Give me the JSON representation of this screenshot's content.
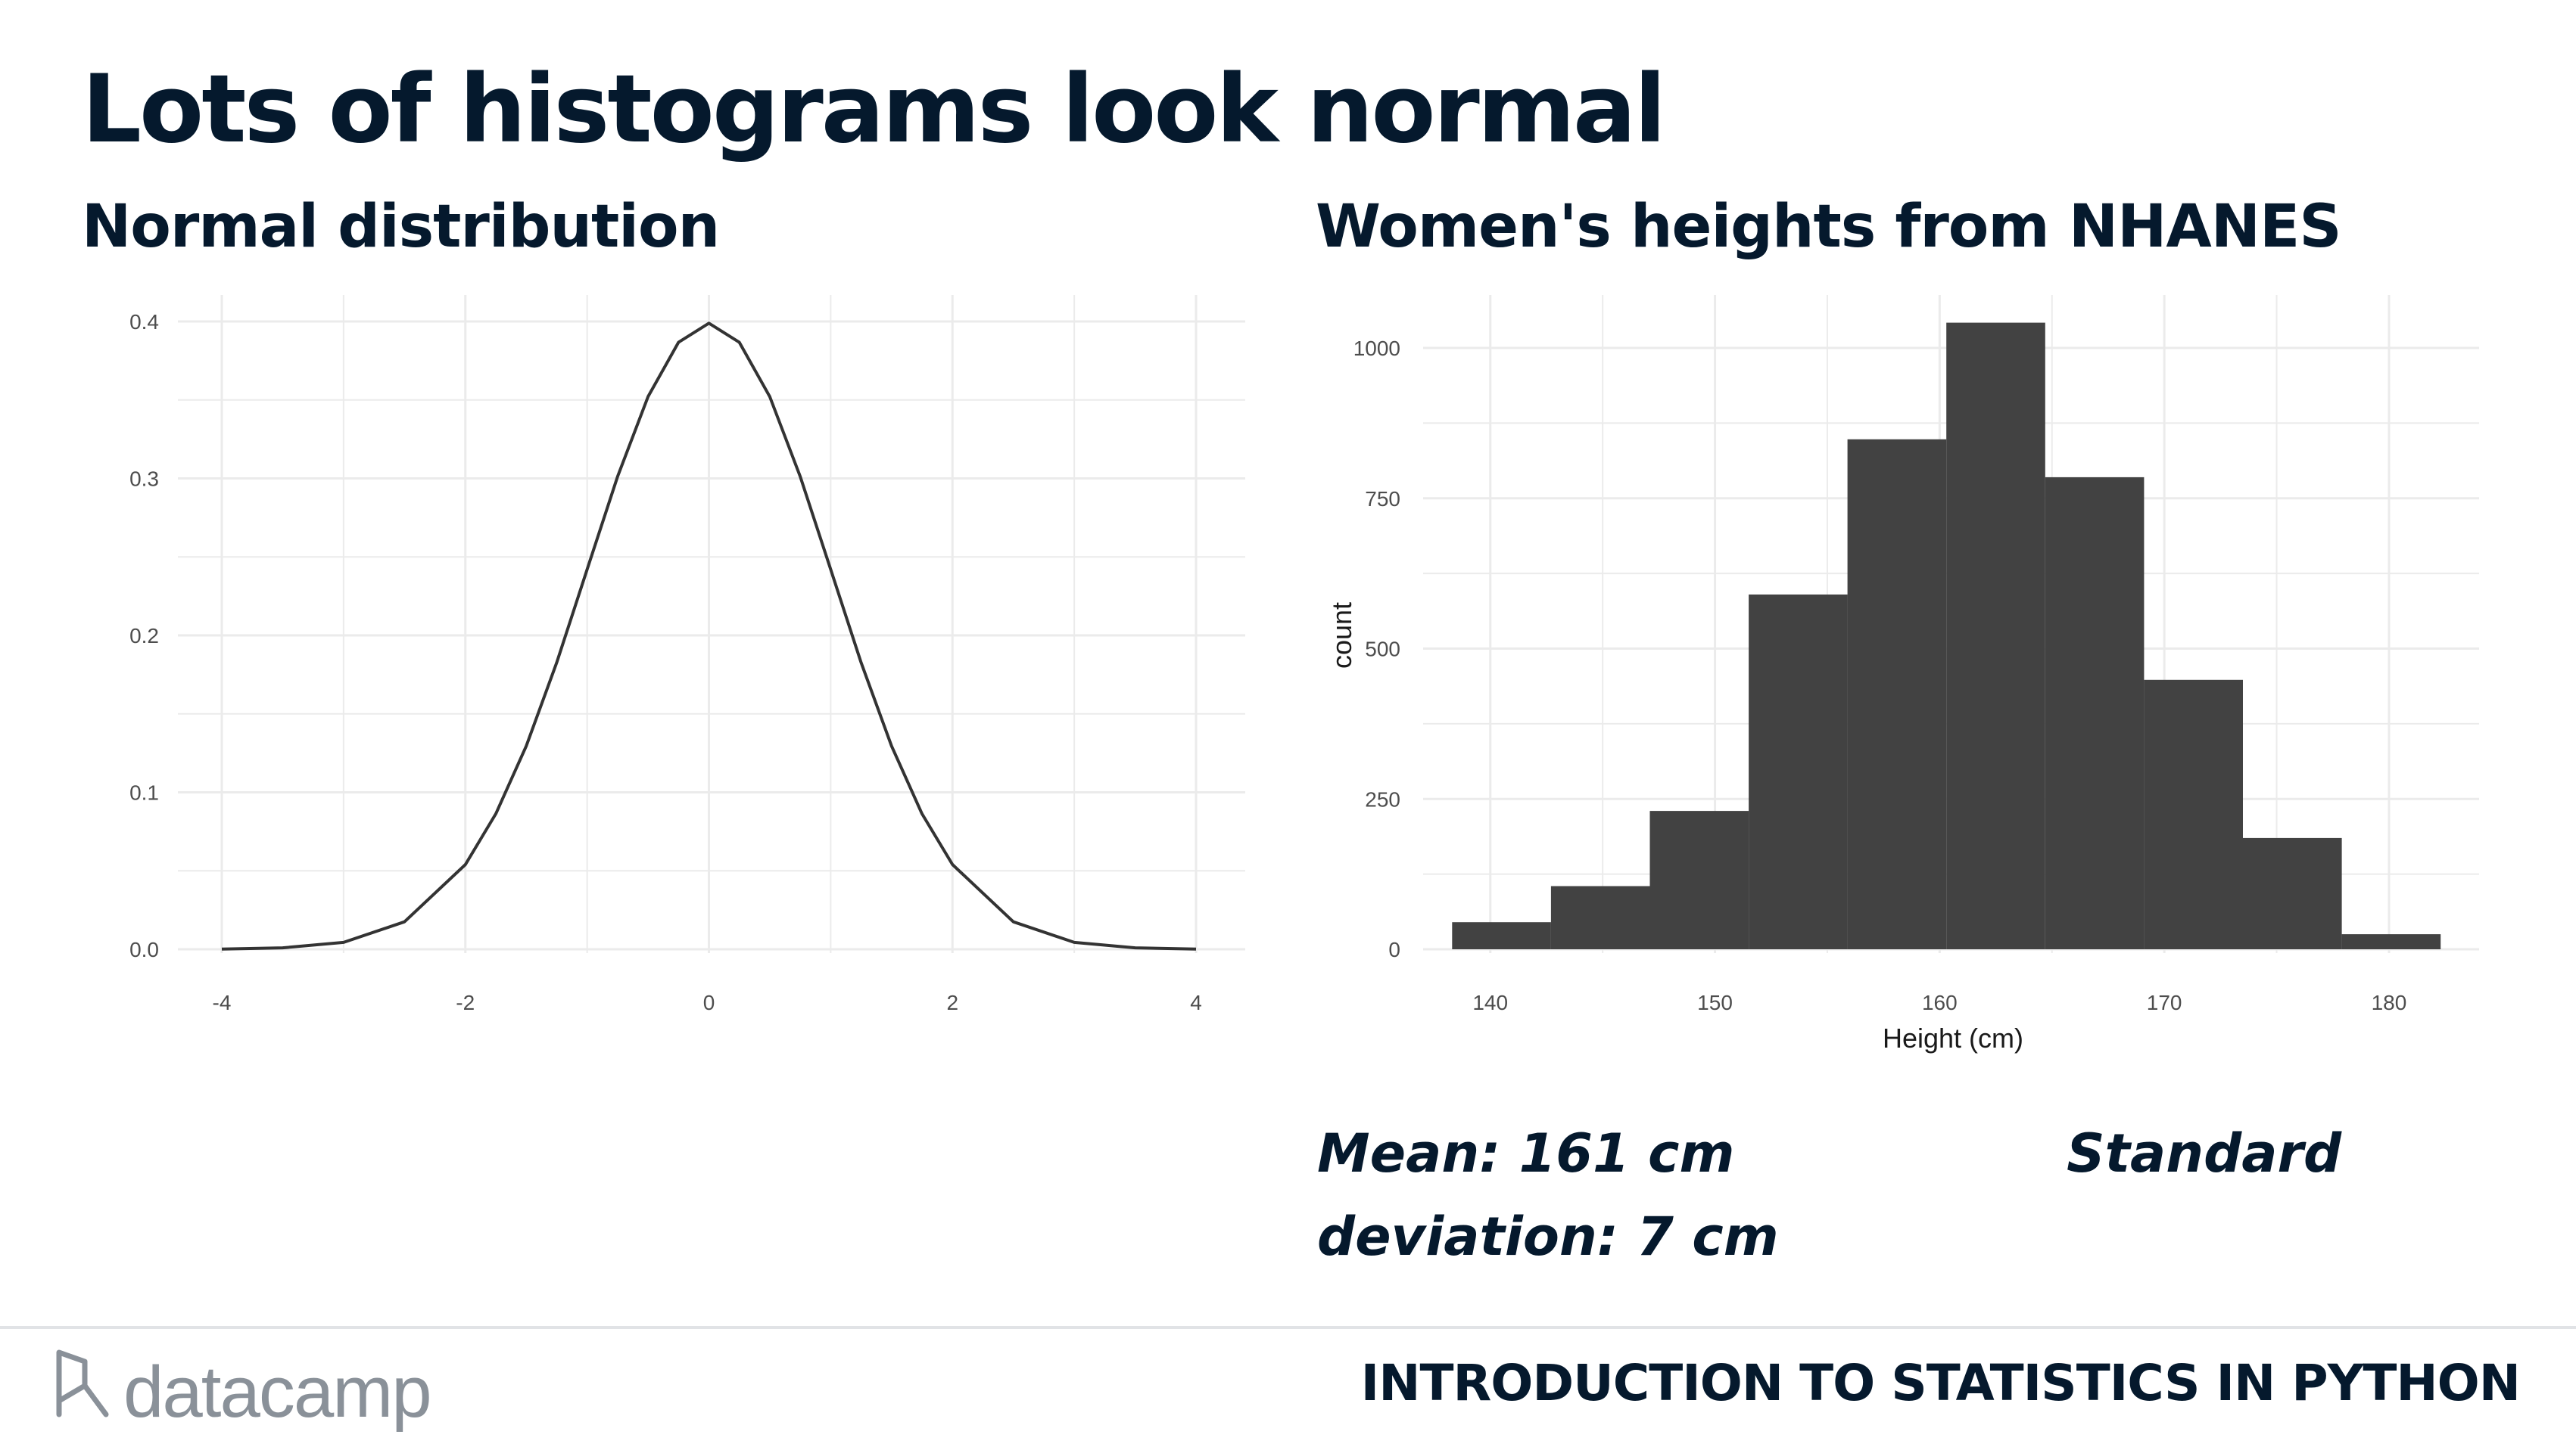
{
  "slide": {
    "title": "Lots of histograms look normal",
    "caption_parts": [
      "Mean: 161 cm",
      "Standard deviation: 7 cm"
    ],
    "footer_course": "INTRODUCTION TO STATISTICS IN PYTHON",
    "logo_text": "datacamp"
  },
  "colors": {
    "text": "#05192d",
    "bar_fill": "#424242",
    "curve_stroke": "#333333",
    "grid": "#ebebeb",
    "logo_grey": "#8a9199"
  },
  "chart_data": [
    {
      "type": "line",
      "title": "Normal distribution",
      "xlabel": "",
      "ylabel": "",
      "xlim": [
        -4,
        4
      ],
      "ylim": [
        0,
        0.4
      ],
      "xticks": [
        -4,
        -2,
        0,
        2,
        4
      ],
      "yticks": [
        0.0,
        0.1,
        0.2,
        0.3,
        0.4
      ],
      "x_tick_labels": [
        "-4",
        "-2",
        "0",
        "2",
        "4"
      ],
      "y_tick_labels": [
        "0.0",
        "0.1",
        "0.2",
        "0.3",
        "0.4"
      ],
      "grid": true,
      "series": [
        {
          "x": [
            -4,
            -3.5,
            -3,
            -2.5,
            -2,
            -1.75,
            -1.5,
            -1.25,
            -1,
            -0.75,
            -0.5,
            -0.25,
            0,
            0.25,
            0.5,
            0.75,
            1,
            1.25,
            1.5,
            1.75,
            2,
            2.5,
            3,
            3.5,
            4
          ],
          "y": [
            0.0001,
            0.0009,
            0.0044,
            0.0175,
            0.054,
            0.0863,
            0.1295,
            0.1826,
            0.242,
            0.3011,
            0.3521,
            0.3867,
            0.3989,
            0.3867,
            0.3521,
            0.3011,
            0.242,
            0.1826,
            0.1295,
            0.0863,
            0.054,
            0.0175,
            0.0044,
            0.0009,
            0.0001
          ]
        }
      ]
    },
    {
      "type": "bar",
      "title": "Women's heights from NHANES",
      "xlabel": "Height (cm)",
      "ylabel": "count",
      "xlim": [
        136,
        183
      ],
      "ylim": [
        0,
        1000
      ],
      "xticks": [
        140,
        150,
        160,
        170,
        180
      ],
      "yticks": [
        0,
        250,
        500,
        750,
        1000
      ],
      "x_tick_labels": [
        "140",
        "150",
        "160",
        "170",
        "180"
      ],
      "y_tick_labels": [
        "0",
        "250",
        "500",
        "750",
        "1000"
      ],
      "grid": true,
      "bins": [
        {
          "x0": 138.3,
          "x1": 142.7,
          "count": 45
        },
        {
          "x0": 142.7,
          "x1": 147.1,
          "count": 105
        },
        {
          "x0": 147.1,
          "x1": 151.5,
          "count": 230
        },
        {
          "x0": 151.5,
          "x1": 155.9,
          "count": 590
        },
        {
          "x0": 155.9,
          "x1": 160.3,
          "count": 848
        },
        {
          "x0": 160.3,
          "x1": 164.7,
          "count": 1042
        },
        {
          "x0": 164.7,
          "x1": 169.1,
          "count": 785
        },
        {
          "x0": 169.1,
          "x1": 173.5,
          "count": 448
        },
        {
          "x0": 173.5,
          "x1": 177.9,
          "count": 185
        },
        {
          "x0": 177.9,
          "x1": 182.3,
          "count": 25
        }
      ]
    }
  ]
}
